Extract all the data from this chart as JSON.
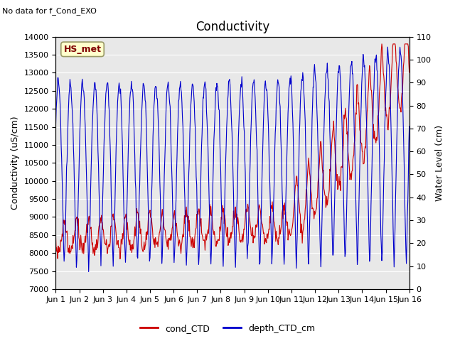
{
  "title": "Conductivity",
  "top_left_text": "No data for f_Cond_EXO",
  "legend_box_text": "HS_met",
  "ylabel_left": "Conductivity (uS/cm)",
  "ylabel_right": "Water Level (cm)",
  "ylim_left": [
    7000,
    14000
  ],
  "ylim_right": [
    0,
    110
  ],
  "yticks_left": [
    7000,
    7500,
    8000,
    8500,
    9000,
    9500,
    10000,
    10500,
    11000,
    11500,
    12000,
    12500,
    13000,
    13500,
    14000
  ],
  "yticks_right": [
    0,
    10,
    20,
    30,
    40,
    50,
    60,
    70,
    80,
    90,
    100,
    110
  ],
  "xtick_labels": [
    "Jun 1",
    "Jun 2",
    "Jun 3",
    "Jun 4",
    "Jun 5",
    "Jun 6",
    "Jun 7",
    "Jun 8",
    "Jun 9",
    "Jun 10",
    "Jun 11",
    "Jun 12",
    "Jun 13",
    "Jun 14",
    "Jun 15",
    "Jun 16"
  ],
  "plot_bg_color": "#e8e8e8",
  "line_color_cond": "#cc0000",
  "line_color_depth": "#0000cc",
  "legend_entry_cond": "cond_CTD",
  "legend_entry_depth": "depth_CTD_cm",
  "box_color": "#ffffcc",
  "box_edge_color": "#999966",
  "box_text_color": "#800000",
  "grid_color": "#ffffff",
  "title_fontsize": 12,
  "label_fontsize": 9,
  "tick_fontsize": 8,
  "xtick_fontsize": 8
}
